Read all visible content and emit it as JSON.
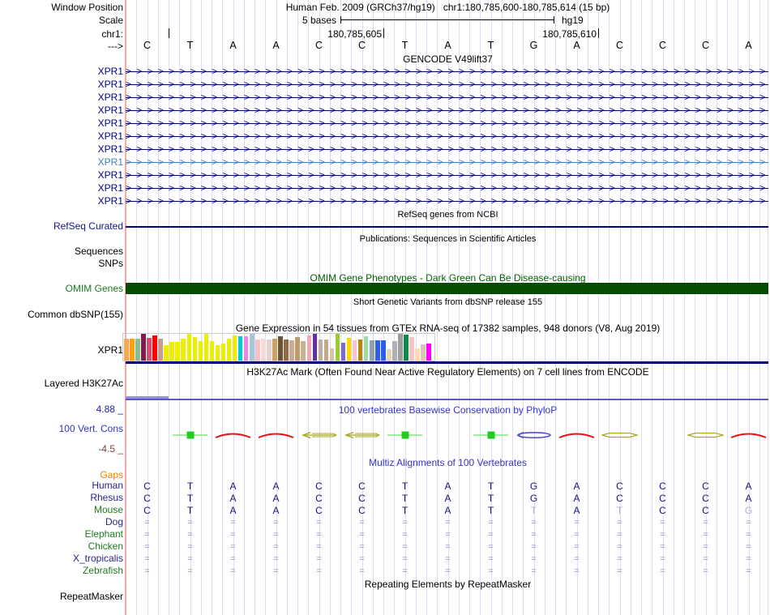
{
  "colors": {
    "navy": "#000080",
    "gencode_highlight": "#3F7EC1",
    "grid_line": "#DCDCF2",
    "edge_line": "#F7A8A8",
    "omim_bar": "#054D05",
    "omim_title_green": "#006400",
    "omim_label_green": "#1C7A1C",
    "blue_title": "#3333CC",
    "max_label_blue": "#22229E",
    "min_label_red": "#8B3A3A",
    "gaps_orange": "#F08000",
    "species_navy": "#26268C",
    "species_green": "#1F7A1F",
    "base_letter_navy": "#14147E",
    "dim_letter": "#A8B0D4",
    "eq_mark": "#8A94C8",
    "h3k_line": "#5B5BB0",
    "h3k_segment": "#9090DC",
    "gtex_baseline": "#000080",
    "refseq_line": "#000080"
  },
  "glyph_chars": {
    "strand_arrow": ">",
    "gap_mark": "="
  },
  "header": {
    "row1_label": "Window Position",
    "assembly_title": "Human Feb. 2009 (GRCh37/hg19)",
    "position_range": "chr1:180,785,600-180,785,614 (15 bp)",
    "scale_label": "Scale",
    "scale_text": "5 bases",
    "assembly": "hg19",
    "chrom_label": "chr1:",
    "coord_left": "180,785,605",
    "coord_right": "180,785,610",
    "strand_label": "--->",
    "bases": [
      "C",
      "T",
      "A",
      "A",
      "C",
      "C",
      "T",
      "A",
      "T",
      "G",
      "A",
      "C",
      "C",
      "C",
      "A"
    ]
  },
  "gencode": {
    "title": "GENCODE V49lift37",
    "gene_rows": [
      {
        "label": "XPR1",
        "highlight": false
      },
      {
        "label": "XPR1",
        "highlight": false
      },
      {
        "label": "XPR1",
        "highlight": false
      },
      {
        "label": "XPR1",
        "highlight": false
      },
      {
        "label": "XPR1",
        "highlight": false
      },
      {
        "label": "XPR1",
        "highlight": false
      },
      {
        "label": "XPR1",
        "highlight": false
      },
      {
        "label": "XPR1",
        "highlight": true
      },
      {
        "label": "XPR1",
        "highlight": false
      },
      {
        "label": "XPR1",
        "highlight": false
      },
      {
        "label": "XPR1",
        "highlight": false
      }
    ]
  },
  "refseq": {
    "note": "RefSeq genes from NCBI",
    "label": "RefSeq Curated"
  },
  "publications": {
    "title": "Publications: Sequences in Scientific Articles"
  },
  "sequences_label": "Sequences",
  "snps_label": "SNPs",
  "omim": {
    "title": "OMIM Gene Phenotypes - Dark Green Can Be Disease-causing",
    "label": "OMIM Genes"
  },
  "dbsnp": {
    "title": "Short Genetic Variants from dbSNP release 155",
    "label": "Common dbSNP(155)"
  },
  "gtex": {
    "title": "Gene Expression in 54 tissues from GTEx RNA-seq of 17382 samples, 948 donors (V8, Aug 2019)",
    "label": "XPR1",
    "bars": [
      [
        "#FFA54F",
        27
      ],
      [
        "#FFA010",
        27
      ],
      [
        "#8FBC8F",
        27
      ],
      [
        "#7C2053",
        33
      ],
      [
        "#D4506E",
        28
      ],
      [
        "#FF0000",
        31
      ],
      [
        "#C69C8E",
        27
      ],
      [
        "#EEEE00",
        19
      ],
      [
        "#EEEE00",
        23
      ],
      [
        "#EEEE00",
        23
      ],
      [
        "#EEEE00",
        27
      ],
      [
        "#EEEE00",
        33
      ],
      [
        "#EEEE00",
        29
      ],
      [
        "#EEEE00",
        24
      ],
      [
        "#EEEE00",
        33
      ],
      [
        "#EEEE00",
        24
      ],
      [
        "#EEEE00",
        19
      ],
      [
        "#EEEE00",
        21
      ],
      [
        "#EEEE00",
        27
      ],
      [
        "#EEEE00",
        31
      ],
      [
        "#00CDCD",
        30
      ],
      [
        "#EE82EE",
        30
      ],
      [
        "#A9C6D8",
        33
      ],
      [
        "#F2C4C4",
        26
      ],
      [
        "#F4DADA",
        27
      ],
      [
        "#E8D0D0",
        26
      ],
      [
        "#CBA263",
        27
      ],
      [
        "#6E5433",
        30
      ],
      [
        "#8E6B47",
        26
      ],
      [
        "#C9AB93",
        25
      ],
      [
        "#C09A6A",
        29
      ],
      [
        "#C8B090",
        24
      ],
      [
        "#F4A7B9",
        31
      ],
      [
        "#6A2DA0",
        33
      ],
      [
        "#BFB0A3",
        26
      ],
      [
        "#C2AA88",
        26
      ],
      [
        "#D6C4A4",
        15
      ],
      [
        "#9ACD32",
        33
      ],
      [
        "#7A6AD8",
        22
      ],
      [
        "#FFD700",
        28
      ],
      [
        "#FFC0CB",
        25
      ],
      [
        "#B8860B",
        26
      ],
      [
        "#98E0A0",
        30
      ],
      [
        "#8FA3AC",
        25
      ],
      [
        "#2E5FE6",
        25
      ],
      [
        "#2E5FE6",
        25
      ],
      [
        "#E8D4BA",
        14
      ],
      [
        "#B0B0B8",
        24
      ],
      [
        "#9E9E9E",
        33
      ],
      [
        "#0F8A4B",
        32
      ],
      [
        "#F0C6C6",
        29
      ],
      [
        "#FFDAB9",
        15
      ],
      [
        "#D8C8B0",
        20
      ],
      [
        "#FF00FF",
        21
      ]
    ]
  },
  "h3k27ac": {
    "title": "H3K27Ac Mark (Often Found Near Active Regulatory Elements) on 7 cell lines from ENCODE",
    "label": "Layered H3K27Ac"
  },
  "conservation": {
    "title": "100 vertebrates Basewise Conservation by PhyloP",
    "label": "100 Vert. Cons",
    "max_value": "4.88 _",
    "min_value": "-4.5 _",
    "glyphs": [
      {
        "col": 2,
        "type": "box",
        "color": "#1FCC1F"
      },
      {
        "col": 3,
        "type": "arc",
        "color": "#E51212"
      },
      {
        "col": 4,
        "type": "arc",
        "color": "#E51212"
      },
      {
        "col": 5,
        "type": "arrow-lens",
        "color": "#A8A81E"
      },
      {
        "col": 6,
        "type": "arrow-lens",
        "color": "#A8A81E"
      },
      {
        "col": 7,
        "type": "box",
        "color": "#1FCC1F"
      },
      {
        "col": 9,
        "type": "box",
        "color": "#1FCC1F"
      },
      {
        "col": 10,
        "type": "ellipse",
        "color": "#5050D0"
      },
      {
        "col": 11,
        "type": "arc",
        "color": "#E51212"
      },
      {
        "col": 12,
        "type": "lens",
        "color": "#A8A81E"
      },
      {
        "col": 14,
        "type": "lens",
        "color": "#A8A81E"
      },
      {
        "col": 15,
        "type": "arc",
        "color": "#E51212"
      }
    ]
  },
  "multiz": {
    "title": "Multiz Alignments of 100 Vertebrates",
    "gaps_label": "Gaps",
    "species": [
      {
        "name": "Human",
        "color": "navy",
        "type": "bases",
        "cells": [
          "C",
          "T",
          "A",
          "A",
          "C",
          "C",
          "T",
          "A",
          "T",
          "G",
          "A",
          "C",
          "C",
          "C",
          "A"
        ],
        "dim": []
      },
      {
        "name": "Rhesus",
        "color": "navy",
        "type": "bases",
        "cells": [
          "C",
          "T",
          "A",
          "A",
          "C",
          "C",
          "T",
          "A",
          "T",
          "G",
          "A",
          "C",
          "C",
          "C",
          "A"
        ],
        "dim": []
      },
      {
        "name": "Mouse",
        "color": "green",
        "type": "bases",
        "cells": [
          "C",
          "T",
          "A",
          "A",
          "C",
          "C",
          "T",
          "A",
          "T",
          "T",
          "A",
          "T",
          "C",
          "C",
          "G"
        ],
        "dim": [
          9,
          11,
          14
        ]
      },
      {
        "name": "Dog",
        "color": "navy",
        "type": "eq"
      },
      {
        "name": "Elephant",
        "color": "green",
        "type": "eq"
      },
      {
        "name": "Chicken",
        "color": "green",
        "type": "eq"
      },
      {
        "name": "X_tropicalis",
        "color": "navy",
        "type": "eq"
      },
      {
        "name": "Zebrafish",
        "color": "green",
        "type": "eq"
      }
    ]
  },
  "repeatmasker": {
    "title": "Repeating Elements by RepeatMasker",
    "label": "RepeatMasker"
  }
}
